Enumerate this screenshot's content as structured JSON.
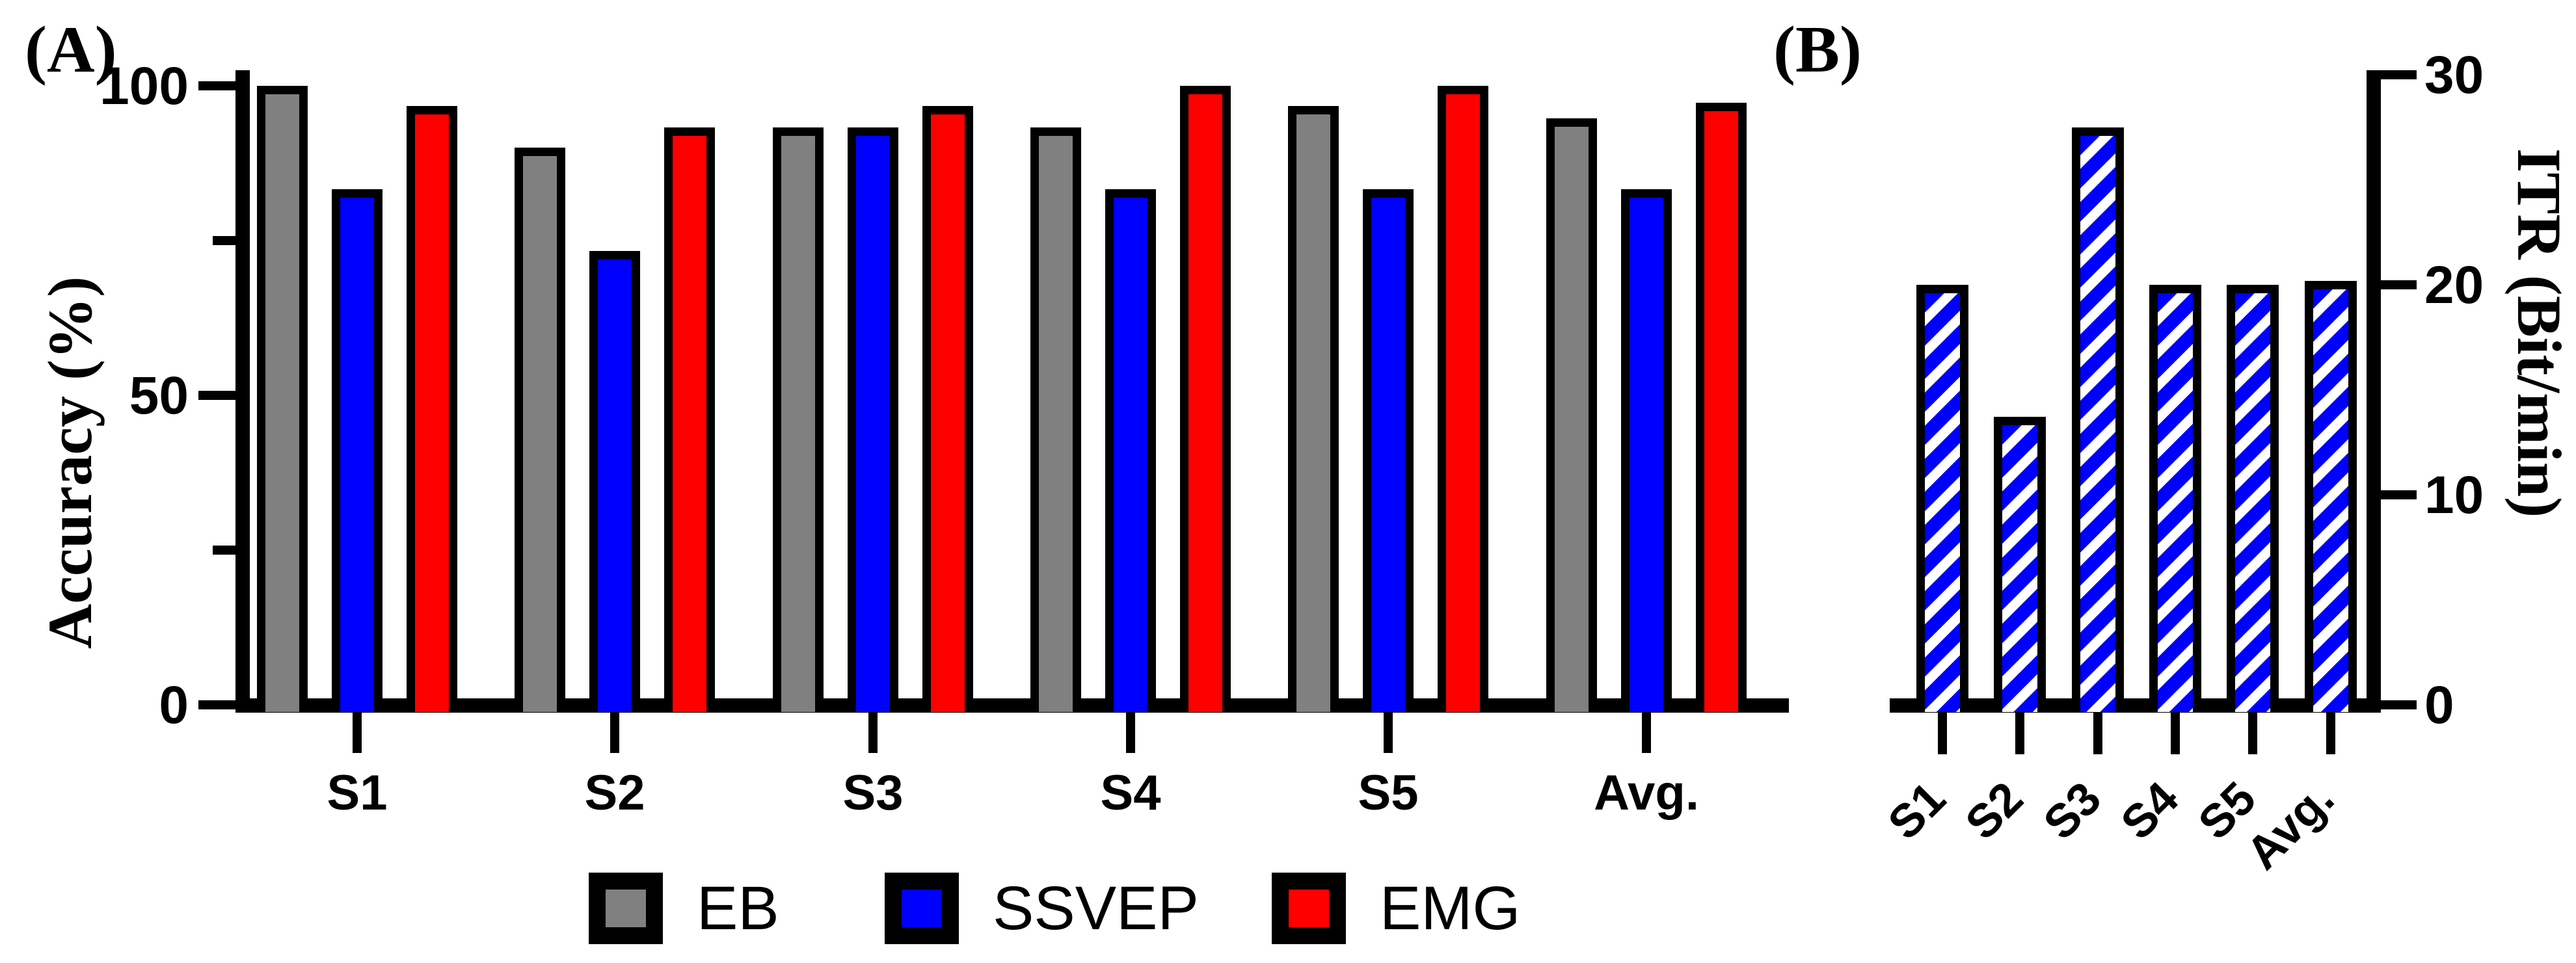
{
  "panel_a": {
    "label": "(A)",
    "ylabel": "Accuracy (%)"
  },
  "panel_b": {
    "label": "(B)",
    "ylabel": "ITR (Bit/min)"
  },
  "legend": {
    "items": [
      {
        "label": "EB",
        "color": "#808080"
      },
      {
        "label": "SSVEP",
        "color": "#0000FF"
      },
      {
        "label": "EMG",
        "color": "#FF0000"
      }
    ]
  },
  "chart_data": [
    {
      "type": "bar",
      "panel": "A",
      "title": "",
      "categories": [
        "S1",
        "S2",
        "S3",
        "S4",
        "S5",
        "Avg."
      ],
      "series": [
        {
          "name": "EB",
          "color": "#808080",
          "values": [
            100,
            90,
            93.3,
            93.3,
            96.7,
            94.7
          ]
        },
        {
          "name": "SSVEP",
          "color": "#0000FF",
          "values": [
            83.3,
            73.3,
            93.3,
            83.3,
            83.3,
            83.3
          ]
        },
        {
          "name": "EMG",
          "color": "#FF0000",
          "values": [
            96.7,
            93.3,
            96.7,
            100,
            100,
            97.3
          ]
        }
      ],
      "xlabel": "",
      "ylabel": "Accuracy (%)",
      "ylim": [
        0,
        100
      ],
      "yticks_major": [
        0,
        50,
        100
      ],
      "yticks_minor": [
        25,
        75
      ],
      "grid": false,
      "legend_position": "bottom",
      "axis_side": "left"
    },
    {
      "type": "bar",
      "panel": "B",
      "title": "",
      "categories": [
        "S1",
        "S2",
        "S3",
        "S4",
        "S5",
        "Avg."
      ],
      "series": [
        {
          "name": "ITR",
          "color": "#0000FF",
          "hatch": "white-diagonal-stripes",
          "values": [
            20.0,
            13.7,
            27.5,
            20.0,
            20.0,
            20.2
          ]
        }
      ],
      "xlabel": "",
      "ylabel": "ITR (Bit/min)",
      "ylim": [
        0,
        30
      ],
      "yticks_major": [
        0,
        10,
        20,
        30
      ],
      "yticks_minor": [],
      "grid": false,
      "legend_position": "none",
      "axis_side": "right",
      "xlabel_rotation_deg": 45
    }
  ]
}
